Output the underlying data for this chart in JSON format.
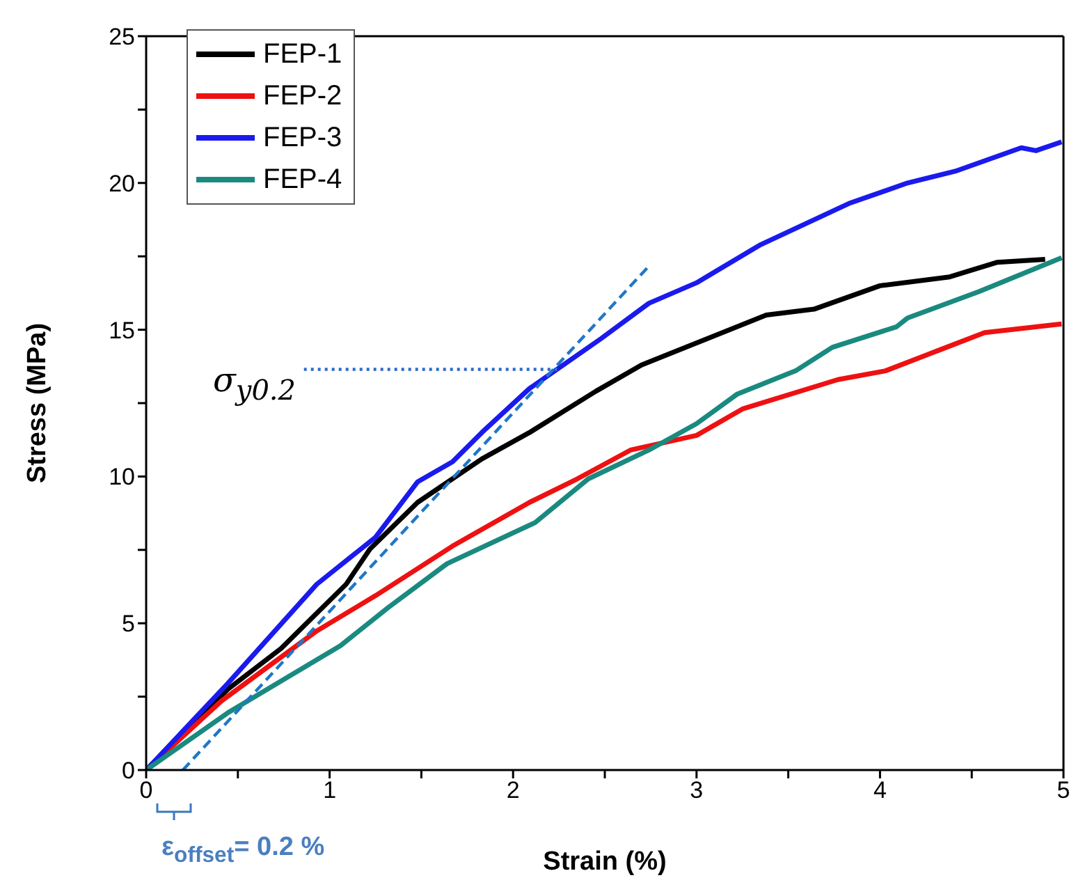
{
  "chart_data": {
    "type": "line",
    "xlabel": "Strain (%)",
    "ylabel": "Stress (MPa)",
    "xlim": [
      0,
      5
    ],
    "ylim": [
      0,
      25
    ],
    "xticks": [
      0,
      {
        "value": 0.5,
        "label": null
      },
      1,
      {
        "value": 1.5,
        "label": null
      },
      2,
      {
        "value": 2.5,
        "label": null
      },
      3,
      {
        "value": 3.5,
        "label": null
      },
      4,
      {
        "value": 4.5,
        "label": null
      },
      5
    ],
    "yticks": [
      0,
      {
        "value": 2.5,
        "label": null
      },
      5,
      {
        "value": 7.5,
        "label": null
      },
      10,
      {
        "value": 12.5,
        "label": null
      },
      15,
      {
        "value": 17.5,
        "label": null
      },
      20,
      {
        "value": 22.5,
        "label": null
      },
      25
    ],
    "grid": false,
    "legend": "top left",
    "marker": "none",
    "line_style": "solid",
    "series": [
      {
        "name": "FEP-1",
        "color": "#000000",
        "x": [
          0,
          0.445,
          0.735,
          0.93,
          1.09,
          1.22,
          1.48,
          1.83,
          2.09,
          2.45,
          2.7,
          3.06,
          3.38,
          3.64,
          4.0,
          4.38,
          4.64,
          4.9
        ],
        "values": [
          0,
          2.75,
          4.14,
          5.34,
          6.33,
          7.53,
          9.12,
          10.6,
          11.5,
          12.9,
          13.8,
          14.7,
          15.5,
          15.7,
          16.5,
          16.8,
          17.3,
          17.4
        ]
      },
      {
        "name": "FEP-2",
        "color": "#ee1111",
        "x": [
          0,
          0.41,
          0.93,
          1.25,
          1.67,
          2.09,
          2.35,
          2.64,
          3.0,
          3.25,
          3.77,
          4.03,
          4.32,
          4.57,
          4.99
        ],
        "values": [
          0,
          2.35,
          4.74,
          5.94,
          7.63,
          9.12,
          9.92,
          10.9,
          11.4,
          12.3,
          13.3,
          13.6,
          14.3,
          14.9,
          15.2
        ]
      },
      {
        "name": "FEP-3",
        "color": "#1a1aee",
        "x": [
          0,
          0.445,
          0.93,
          1.25,
          1.48,
          1.67,
          1.83,
          2.09,
          2.48,
          2.74,
          3.0,
          3.35,
          3.83,
          4.15,
          4.41,
          4.77,
          4.85,
          4.99
        ],
        "values": [
          0,
          2.95,
          6.33,
          7.93,
          9.82,
          10.5,
          11.5,
          13.0,
          14.7,
          15.9,
          16.6,
          17.9,
          19.3,
          20.0,
          20.4,
          21.2,
          21.1,
          21.4
        ]
      },
      {
        "name": "FEP-4",
        "color": "#1a8a80",
        "x": [
          0,
          0.445,
          1.06,
          1.32,
          1.64,
          2.12,
          2.41,
          2.74,
          3.0,
          3.22,
          3.54,
          3.74,
          4.09,
          4.15,
          4.54,
          4.99
        ],
        "values": [
          0,
          1.95,
          4.24,
          5.54,
          7.03,
          8.43,
          9.92,
          10.9,
          11.8,
          12.8,
          13.6,
          14.4,
          15.1,
          15.4,
          16.3,
          17.45
        ]
      },
      {
        "type": "line",
        "color": "#1f77c8",
        "line_style": "dashed",
        "x": [
          0.2,
          2.73
        ],
        "values": [
          0,
          17.1
        ]
      },
      {
        "type": "line",
        "color": "#2d6bcc",
        "line_style": "dotted",
        "x": [
          0.86,
          2.25
        ],
        "values": [
          13.65,
          13.65
        ]
      }
    ],
    "annotations": [
      "σ$_{y0.2}$",
      "ε$_{offset}$= 0.2 %"
    ]
  }
}
